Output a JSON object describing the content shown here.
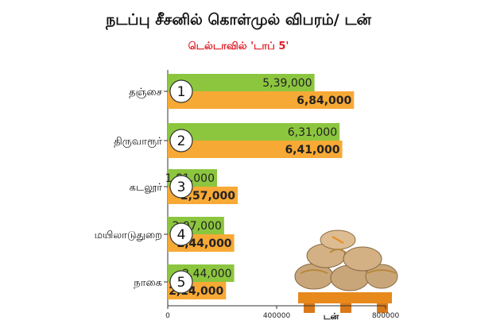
{
  "chart_data": {
    "type": "bar",
    "title": "நடப்பு சீசனில் கொள்முல் விபரம்/ டன்",
    "subtitle": "டெல்டாவில் 'டாப் 5'",
    "xlabel": "டன்",
    "categories": [
      "தஞ்சை",
      "திருவாரூர்",
      "கடலூர்",
      "மயிலாடுதுறை",
      "நாகை"
    ],
    "ranks": [
      "1",
      "2",
      "3",
      "4",
      "5"
    ],
    "series": [
      {
        "values": [
          539000,
          631000,
          181000,
          207000,
          244000
        ],
        "labels": [
          "5,39,000",
          "6,31,000",
          "1,81,000",
          "2,07,000",
          "2,44,000"
        ],
        "color": "#8cc63f"
      },
      {
        "values": [
          684000,
          641000,
          257000,
          244000,
          214000
        ],
        "labels": [
          "6,84,000",
          "6,41,000",
          "2,57,000",
          "2,44,000",
          "2,14,000"
        ],
        "color": "#f7a935"
      }
    ],
    "xlim": [
      0,
      800000
    ],
    "xticks": [
      "0",
      "400000",
      "800000"
    ],
    "grid": false,
    "legend": "none"
  }
}
